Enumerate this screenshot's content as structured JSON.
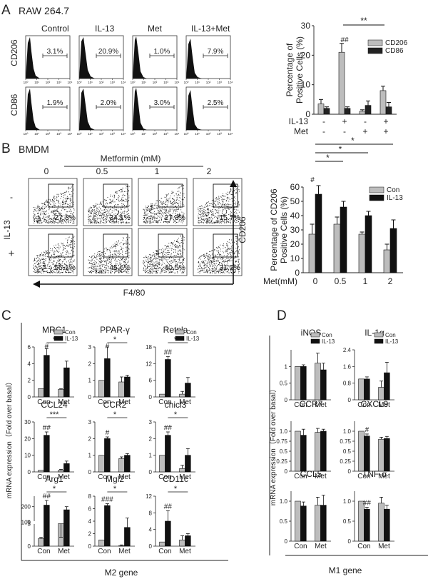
{
  "panel_letters": [
    "A",
    "B",
    "C",
    "D"
  ],
  "panel_a": {
    "cell_line": "RAW 264.7",
    "conditions": [
      "Control",
      "IL-13",
      "Met",
      "IL-13+Met"
    ],
    "markers": [
      "CD206",
      "CD86"
    ],
    "histogram_percents": {
      "CD206": [
        "3.1%",
        "20.9%",
        "1.0%",
        "7.9%"
      ],
      "CD86": [
        "1.9%",
        "2.0%",
        "3.0%",
        "2.5%"
      ]
    },
    "hist_ticks": [
      "10⁰",
      "10¹",
      "10²",
      "10³",
      "10⁴"
    ]
  },
  "panel_b": {
    "cell_type": "BMDM",
    "metformin_label": "Metformin (mM)",
    "doses": [
      "0",
      "0.5",
      "1",
      "2"
    ],
    "row_labels": [
      "-",
      "+"
    ],
    "il13_label": "IL-13",
    "x_axis_label": "F4/80",
    "y_axis_label": "CD206",
    "scatter_percents": {
      "minus": [
        "27.3%",
        "34.1%",
        "27.3%",
        "15.7%"
      ],
      "plus": [
        "55.1%",
        "45.6%",
        "40.5%",
        "31.2%"
      ]
    }
  },
  "panel_c": {
    "footer": "M2 gene",
    "ylabel": "mRNA expression（Fold over basal）"
  },
  "panel_d": {
    "footer": "M1 gene",
    "ylabel": "mRNA expression（Fold over basal）"
  },
  "chart_data": [
    {
      "id": "A_bar",
      "type": "bar",
      "ylabel": "Percentage of Positive Cells (%)",
      "ylim": [
        0,
        30
      ],
      "yticks": [
        "0",
        "10",
        "20",
        "30"
      ],
      "row_labels": [
        "IL-13",
        "Met"
      ],
      "row_signs": [
        [
          "-",
          "+",
          "-",
          "+"
        ],
        [
          "-",
          "-",
          "+",
          "+"
        ]
      ],
      "series": [
        {
          "name": "CD206",
          "color": "#bdbdbd",
          "values": [
            3.5,
            21,
            1,
            8
          ],
          "errors": [
            1.5,
            3,
            0.5,
            1.5
          ]
        },
        {
          "name": "CD86",
          "color": "#222222",
          "values": [
            2,
            2,
            3,
            2.5
          ],
          "errors": [
            0.5,
            0.5,
            1.5,
            1.5
          ]
        }
      ],
      "annotations": [
        "##",
        "**"
      ]
    },
    {
      "id": "B_bar",
      "type": "bar",
      "ylabel": "Percentage of CD206 Positive Cells (%)",
      "xlabel": "Met(mM)",
      "categories": [
        "0",
        "0.5",
        "1",
        "2"
      ],
      "ylim": [
        0,
        60
      ],
      "yticks": [
        "0",
        "10",
        "20",
        "30",
        "40",
        "50",
        "60"
      ],
      "series": [
        {
          "name": "Con",
          "color": "#bdbdbd",
          "values": [
            27,
            34,
            27,
            16
          ],
          "errors": [
            7,
            5,
            1.5,
            4
          ]
        },
        {
          "name": "IL-13",
          "color": "#111111",
          "values": [
            55,
            46,
            40,
            31
          ],
          "errors": [
            6,
            4,
            3,
            6
          ]
        }
      ],
      "annotations": [
        "#",
        "*",
        "*",
        "*"
      ]
    },
    {
      "id": "MRC1",
      "type": "bar",
      "title": "MRC1",
      "categories": [
        "Con",
        "Met"
      ],
      "ylim": [
        0,
        6
      ],
      "yticks": [
        "0",
        "2",
        "4",
        "6"
      ],
      "legend": [
        "Con",
        "IL-13"
      ],
      "series": [
        {
          "name": "Con",
          "values": [
            1,
            0.9
          ],
          "errors": [
            0,
            0.1
          ]
        },
        {
          "name": "IL-13",
          "values": [
            5,
            3.5
          ],
          "errors": [
            0.8,
            0.8
          ]
        }
      ],
      "annotations": [
        "#",
        "*"
      ]
    },
    {
      "id": "PPARg",
      "type": "bar",
      "title": "PPAR-γ",
      "categories": [
        "Con",
        "Met"
      ],
      "ylim": [
        0,
        3
      ],
      "yticks": [
        "0",
        "1",
        "2",
        "3"
      ],
      "series": [
        {
          "name": "Con",
          "values": [
            1,
            0.9
          ],
          "errors": [
            0,
            0.3
          ]
        },
        {
          "name": "IL-13",
          "values": [
            2.3,
            1.2
          ],
          "errors": [
            0.7,
            0.1
          ]
        }
      ],
      "annotations": [
        "#",
        "*"
      ]
    },
    {
      "id": "Retnla",
      "type": "bar",
      "title": "Retnla",
      "categories": [
        "Con",
        "Met"
      ],
      "ylim": [
        0,
        18
      ],
      "yticks": [
        "0",
        "6",
        "12",
        "18"
      ],
      "legend": [
        "Con",
        "IL-13"
      ],
      "series": [
        {
          "name": "Con",
          "values": [
            1,
            1
          ],
          "errors": [
            0,
            1
          ]
        },
        {
          "name": "IL-13",
          "values": [
            13.5,
            5
          ],
          "errors": [
            1,
            2
          ]
        }
      ],
      "annotations": [
        "##",
        "*"
      ]
    },
    {
      "id": "CCL24",
      "type": "bar",
      "title": "CCL24",
      "categories": [
        "Con",
        "Met"
      ],
      "ylim": [
        0,
        30
      ],
      "yticks": [
        "0",
        "10",
        "20",
        "30"
      ],
      "series": [
        {
          "name": "Con",
          "values": [
            1,
            1
          ],
          "errors": [
            0,
            0.5
          ]
        },
        {
          "name": "IL-13",
          "values": [
            22,
            5
          ],
          "errors": [
            2,
            1.5
          ]
        }
      ],
      "annotations": [
        "##",
        "***"
      ]
    },
    {
      "id": "CCR2",
      "type": "bar",
      "title": "CCR2",
      "categories": [
        "Con",
        "Met"
      ],
      "ylim": [
        0,
        3
      ],
      "yticks": [
        "0",
        "1",
        "2",
        "3"
      ],
      "series": [
        {
          "name": "Con",
          "values": [
            1,
            0.8
          ],
          "errors": [
            0,
            0.1
          ]
        },
        {
          "name": "IL-13",
          "values": [
            2,
            1
          ],
          "errors": [
            0.1,
            0.1
          ]
        }
      ],
      "annotations": [
        "#",
        "*"
      ]
    },
    {
      "id": "chicl3",
      "type": "bar",
      "title": "chicl3",
      "categories": [
        "Con",
        "Met"
      ],
      "ylim": [
        0,
        3
      ],
      "yticks": [
        "0",
        "1",
        "2",
        "3"
      ],
      "series": [
        {
          "name": "Con",
          "values": [
            1,
            0.2
          ],
          "errors": [
            0,
            0.2
          ]
        },
        {
          "name": "IL-13",
          "values": [
            2.2,
            1
          ],
          "errors": [
            0.2,
            0.4
          ]
        }
      ],
      "annotations": [
        "##",
        "*"
      ]
    },
    {
      "id": "Arg1",
      "type": "bar",
      "title": "Arg1",
      "categories": [
        "Con",
        "Met"
      ],
      "yticks": [
        "0",
        "3",
        "100",
        "200"
      ],
      "axis_break": true,
      "series": [
        {
          "name": "Con",
          "values": [
            1,
            3
          ],
          "errors": [
            0.2,
            0.8
          ]
        },
        {
          "name": "IL-13",
          "values": [
            210,
            180
          ],
          "errors": [
            30,
            20
          ]
        }
      ],
      "annotations": [
        "##",
        "*"
      ]
    },
    {
      "id": "Mgl2",
      "type": "bar",
      "title": "Mgl2",
      "categories": [
        "Con",
        "Met"
      ],
      "ylim": [
        0,
        8
      ],
      "yticks": [
        "0",
        "2",
        "4",
        "6",
        "8"
      ],
      "series": [
        {
          "name": "Con",
          "values": [
            1,
            0.1
          ],
          "errors": [
            0,
            0.1
          ]
        },
        {
          "name": "IL-13",
          "values": [
            6.5,
            3
          ],
          "errors": [
            0.3,
            1.5
          ]
        }
      ],
      "annotations": [
        "###",
        "*"
      ]
    },
    {
      "id": "CD11c",
      "type": "bar",
      "title": "CD11c",
      "categories": [
        "Con",
        "Met"
      ],
      "ylim": [
        0,
        12
      ],
      "yticks": [
        "0",
        "4",
        "8",
        "12"
      ],
      "series": [
        {
          "name": "Con",
          "values": [
            1,
            1.5
          ],
          "errors": [
            0,
            1
          ]
        },
        {
          "name": "IL-13",
          "values": [
            6,
            2.5
          ],
          "errors": [
            2.5,
            0.5
          ]
        }
      ],
      "annotations": [
        "##",
        "*"
      ]
    },
    {
      "id": "iNOS",
      "type": "bar",
      "title": "iNOS",
      "categories": [
        "Con",
        "Met"
      ],
      "ylim": [
        0,
        1.5
      ],
      "yticks": [
        "0",
        "0.5",
        "1"
      ],
      "legend": [
        "Con",
        "IL-13"
      ],
      "series": [
        {
          "name": "Con",
          "values": [
            1,
            1.1
          ],
          "errors": [
            0,
            0.3
          ]
        },
        {
          "name": "IL-13",
          "values": [
            1,
            0.9
          ],
          "errors": [
            0.05,
            0.2
          ]
        }
      ],
      "annotations": []
    },
    {
      "id": "IL1a",
      "type": "bar",
      "title": "IL-1α",
      "categories": [
        "Con",
        "Met"
      ],
      "ylim": [
        0,
        2.4
      ],
      "yticks": [
        "0",
        "0.8",
        "1.6",
        "2.4"
      ],
      "legend": [
        "Con",
        "IL-13"
      ],
      "series": [
        {
          "name": "Con",
          "values": [
            1,
            0.6
          ],
          "errors": [
            0,
            0.3
          ]
        },
        {
          "name": "IL-13",
          "values": [
            1,
            1.3
          ],
          "errors": [
            0.1,
            0.5
          ]
        }
      ],
      "annotations": []
    },
    {
      "id": "CCR7",
      "type": "bar",
      "title": "CCR7",
      "categories": [
        "Con",
        "Met"
      ],
      "ylim": [
        0,
        1.25
      ],
      "yticks": [
        "0",
        "0.25",
        "0.5",
        "0.75",
        "1.0"
      ],
      "series": [
        {
          "name": "Con",
          "values": [
            1,
            0.97
          ],
          "errors": [
            0,
            0.1
          ]
        },
        {
          "name": "IL-13",
          "values": [
            0.9,
            1
          ],
          "errors": [
            0.15,
            0.05
          ]
        }
      ],
      "annotations": []
    },
    {
      "id": "CXCL9",
      "type": "bar",
      "title": "CXCL9",
      "categories": [
        "Con",
        "Met"
      ],
      "ylim": [
        0,
        1.25
      ],
      "yticks": [
        "0",
        "0.25",
        "0.5",
        "0.75",
        "1.0"
      ],
      "series": [
        {
          "name": "Con",
          "values": [
            1,
            0.8
          ],
          "errors": [
            0,
            0.05
          ]
        },
        {
          "name": "IL-13",
          "values": [
            0.88,
            0.82
          ],
          "errors": [
            0.05,
            0.05
          ]
        }
      ],
      "annotations": [
        "#"
      ]
    },
    {
      "id": "CCL5",
      "type": "bar",
      "title": "CCL5",
      "categories": [
        "Con",
        "Met"
      ],
      "ylim": [
        0,
        1.25
      ],
      "yticks": [
        "0",
        "0.5",
        "1.0"
      ],
      "series": [
        {
          "name": "Con",
          "values": [
            1,
            0.9
          ],
          "errors": [
            0,
            0.2
          ]
        },
        {
          "name": "IL-13",
          "values": [
            0.88,
            0.9
          ],
          "errors": [
            0.1,
            0.25
          ]
        }
      ],
      "annotations": []
    },
    {
      "id": "TNFa",
      "type": "bar",
      "title": "TNF-α",
      "categories": [
        "Con",
        "Met"
      ],
      "ylim": [
        0,
        1.25
      ],
      "yticks": [
        "0",
        "0.5",
        "1.0"
      ],
      "series": [
        {
          "name": "Con",
          "values": [
            1,
            0.95
          ],
          "errors": [
            0,
            0.15
          ]
        },
        {
          "name": "IL-13",
          "values": [
            0.8,
            0.8
          ],
          "errors": [
            0.05,
            0.1
          ]
        }
      ],
      "annotations": [
        "##"
      ]
    }
  ]
}
